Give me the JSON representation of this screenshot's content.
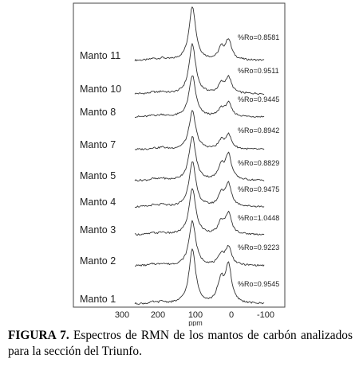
{
  "figure": {
    "spectra": [
      {
        "label": "Manto 11",
        "ro": "%Ro=0.8581"
      },
      {
        "label": "Manto 10",
        "ro": "%Ro=0.9511"
      },
      {
        "label": "Manto 8",
        "ro": "%Ro=0.9445"
      },
      {
        "label": "Manto 7",
        "ro": "%Ro=0.8942"
      },
      {
        "label": "Manto 5",
        "ro": "%Ro=0.8829"
      },
      {
        "label": "Manto 4",
        "ro": "%Ro=0.9475"
      },
      {
        "label": "Manto 3",
        "ro": "%Ro=1.0448"
      },
      {
        "label": "Manto 2",
        "ro": "%Ro=0.9223"
      },
      {
        "label": "Manto 1",
        "ro": "%Ro=0.9545"
      }
    ],
    "x_ticks": [
      "300",
      "200",
      "100",
      "0",
      "-100"
    ],
    "x_unit": "ppm"
  },
  "caption": {
    "lead": "FIGURA 7.",
    "text": " Espectros de RMN de los mantos de carbón analizados para la sección del Triunfo."
  }
}
